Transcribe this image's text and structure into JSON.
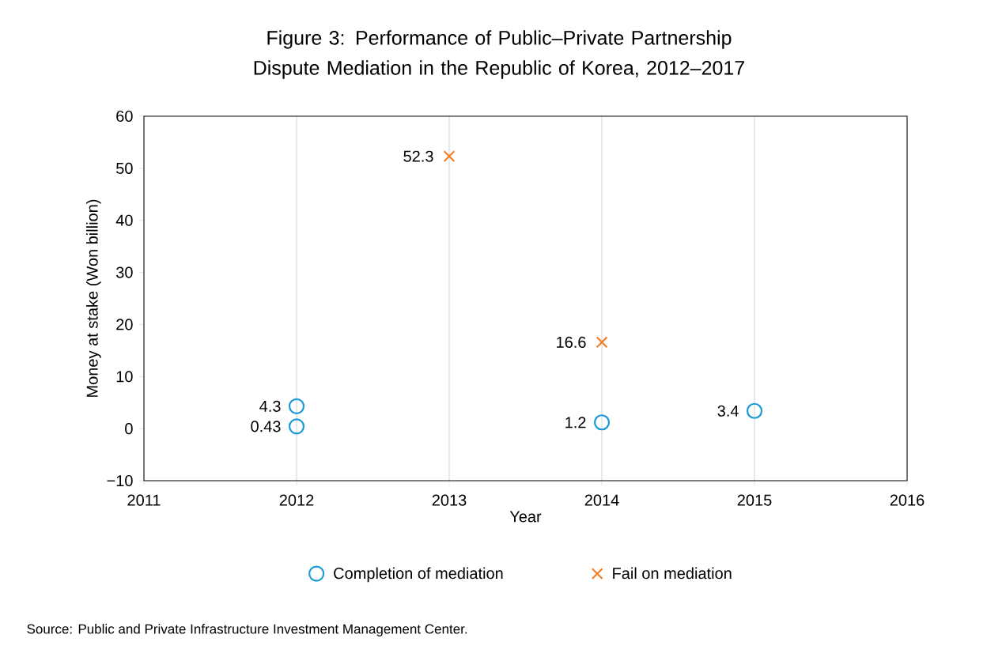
{
  "chart_data": {
    "type": "scatter",
    "title": "Figure 3: Performance of Public–Private Partnership Dispute Mediation in the Republic of Korea, 2012–2017",
    "xlabel": "Year",
    "ylabel": "Money at stake (Won billion)",
    "series": [
      {
        "name": "Completion of mediation",
        "color": "#1a9bd7",
        "marker": "circle",
        "x": [
          2012,
          2012,
          2014,
          2015
        ],
        "values": [
          4.3,
          0.43,
          1.2,
          3.4
        ]
      },
      {
        "name": "Fail on mediation",
        "color": "#f27f26",
        "marker": "cross",
        "x": [
          2013,
          2014
        ],
        "values": [
          52.3,
          16.6
        ]
      }
    ],
    "xlim": [
      2011,
      2016
    ],
    "xticks": [
      2011,
      2012,
      2013,
      2014,
      2015,
      2016
    ],
    "ylim": [
      -10,
      60
    ],
    "yticks": [
      {
        "value": -10,
        "label": "−10"
      },
      0,
      10,
      20,
      30,
      40,
      50,
      60
    ],
    "grid": "x",
    "legend": "bottom",
    "data_labels": true,
    "annotations": [
      "Source: Public and Private Infrastructure Investment Management Center."
    ]
  }
}
